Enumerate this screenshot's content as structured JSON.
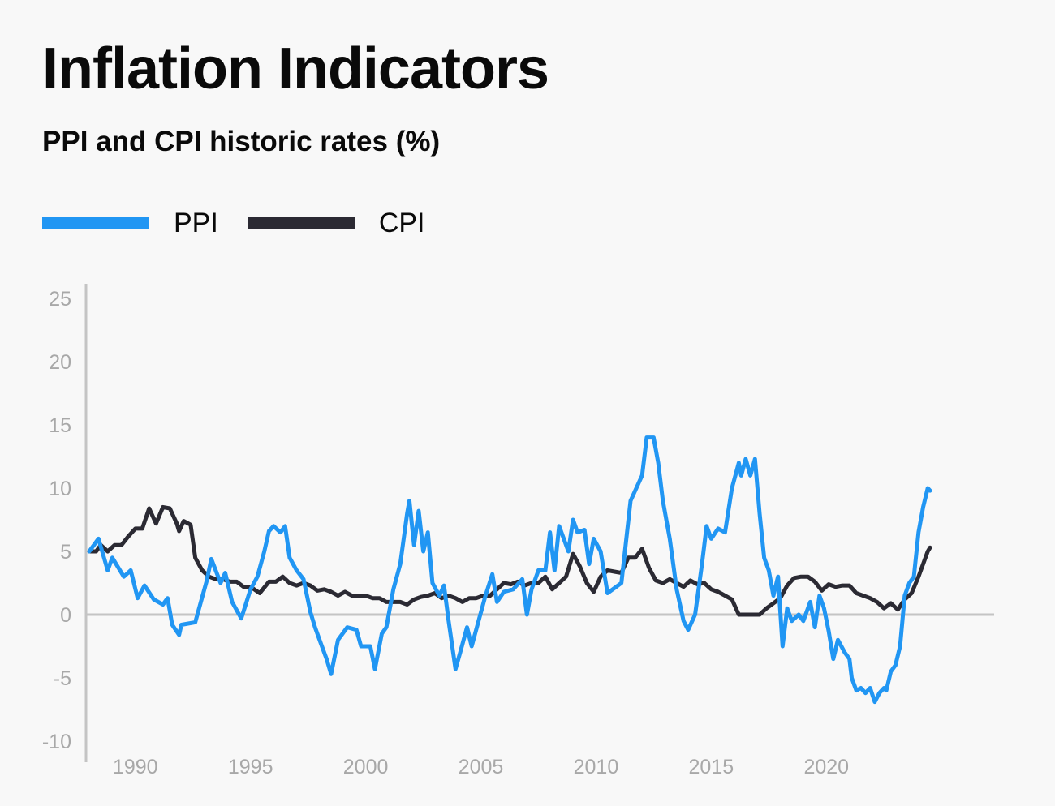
{
  "title": "Inflation Indicators",
  "subtitle": "PPI and CPI historic rates (%)",
  "legend": {
    "ppi": {
      "label": "PPI",
      "color": "#2196f3"
    },
    "cpi": {
      "label": "CPI",
      "color": "#2b2a33"
    }
  },
  "chart_data": {
    "type": "line",
    "title": "Inflation Indicators",
    "subtitle": "PPI and CPI historic rates (%)",
    "xlabel": "",
    "ylabel": "",
    "xlim": [
      1988,
      2024.5
    ],
    "ylim": [
      -10,
      26
    ],
    "x_ticks": [
      1990,
      1995,
      2000,
      2005,
      2010,
      2015,
      2020
    ],
    "y_ticks": [
      25,
      20,
      15,
      10,
      5,
      0,
      -5,
      -10
    ],
    "grid": false,
    "zero_line": true,
    "legend_position": "top-left",
    "series": [
      {
        "name": "PPI",
        "color": "#2196f3",
        "points": [
          [
            1988.0,
            5.0
          ],
          [
            1988.4,
            6.0
          ],
          [
            1988.8,
            3.5
          ],
          [
            1989.0,
            4.5
          ],
          [
            1989.5,
            3.0
          ],
          [
            1989.8,
            3.5
          ],
          [
            1990.1,
            1.3
          ],
          [
            1990.4,
            2.3
          ],
          [
            1990.8,
            1.2
          ],
          [
            1991.2,
            0.8
          ],
          [
            1991.4,
            1.3
          ],
          [
            1991.6,
            -0.8
          ],
          [
            1991.9,
            -1.6
          ],
          [
            1992.0,
            -0.8
          ],
          [
            1992.6,
            -0.6
          ],
          [
            1993.1,
            2.7
          ],
          [
            1993.3,
            4.4
          ],
          [
            1993.7,
            2.5
          ],
          [
            1993.9,
            3.3
          ],
          [
            1994.2,
            1.0
          ],
          [
            1994.6,
            -0.3
          ],
          [
            1995.0,
            2.0
          ],
          [
            1995.3,
            3.0
          ],
          [
            1995.6,
            5.0
          ],
          [
            1995.8,
            6.6
          ],
          [
            1996.0,
            7.0
          ],
          [
            1996.3,
            6.5
          ],
          [
            1996.5,
            7.0
          ],
          [
            1996.7,
            4.5
          ],
          [
            1997.0,
            3.5
          ],
          [
            1997.3,
            2.8
          ],
          [
            1997.6,
            0.2
          ],
          [
            1997.8,
            -1.0
          ],
          [
            1998.0,
            -2.0
          ],
          [
            1998.3,
            -3.5
          ],
          [
            1998.5,
            -4.7
          ],
          [
            1998.8,
            -2.0
          ],
          [
            1999.2,
            -1.0
          ],
          [
            1999.6,
            -1.2
          ],
          [
            1999.8,
            -2.5
          ],
          [
            2000.2,
            -2.5
          ],
          [
            2000.4,
            -4.3
          ],
          [
            2000.7,
            -1.5
          ],
          [
            2000.9,
            -1.0
          ],
          [
            2001.2,
            2.0
          ],
          [
            2001.5,
            4.0
          ],
          [
            2001.8,
            8.0
          ],
          [
            2001.9,
            9.0
          ],
          [
            2002.1,
            5.5
          ],
          [
            2002.3,
            8.2
          ],
          [
            2002.5,
            5.0
          ],
          [
            2002.7,
            6.5
          ],
          [
            2002.9,
            2.5
          ],
          [
            2003.2,
            1.5
          ],
          [
            2003.4,
            2.3
          ],
          [
            2003.6,
            -0.5
          ],
          [
            2003.9,
            -4.3
          ],
          [
            2004.1,
            -3.0
          ],
          [
            2004.4,
            -1.0
          ],
          [
            2004.6,
            -2.5
          ],
          [
            2004.9,
            -0.5
          ],
          [
            2005.2,
            1.5
          ],
          [
            2005.5,
            3.2
          ],
          [
            2005.7,
            1.0
          ],
          [
            2006.0,
            1.8
          ],
          [
            2006.4,
            2.0
          ],
          [
            2006.8,
            2.8
          ],
          [
            2007.0,
            0.0
          ],
          [
            2007.2,
            2.0
          ],
          [
            2007.5,
            3.5
          ],
          [
            2007.8,
            3.5
          ],
          [
            2008.0,
            6.5
          ],
          [
            2008.2,
            3.5
          ],
          [
            2008.4,
            7.0
          ],
          [
            2008.8,
            5.0
          ],
          [
            2009.0,
            7.5
          ],
          [
            2009.2,
            6.5
          ],
          [
            2009.5,
            6.7
          ],
          [
            2009.7,
            4.0
          ],
          [
            2009.9,
            6.0
          ],
          [
            2010.2,
            5.0
          ],
          [
            2010.5,
            1.7
          ],
          [
            2011.1,
            2.5
          ],
          [
            2011.5,
            9.0
          ],
          [
            2012.0,
            11.0
          ],
          [
            2012.2,
            14.0
          ],
          [
            2012.5,
            14.0
          ],
          [
            2012.7,
            12.0
          ],
          [
            2012.9,
            9.0
          ],
          [
            2013.2,
            6.0
          ],
          [
            2013.5,
            2.0
          ],
          [
            2013.8,
            -0.5
          ],
          [
            2014.0,
            -1.2
          ],
          [
            2014.3,
            0.0
          ],
          [
            2014.6,
            4.0
          ],
          [
            2014.8,
            7.0
          ],
          [
            2015.0,
            6.0
          ],
          [
            2015.3,
            6.8
          ],
          [
            2015.6,
            6.5
          ],
          [
            2015.9,
            10.0
          ],
          [
            2016.2,
            12.0
          ],
          [
            2016.3,
            11.0
          ],
          [
            2016.5,
            12.3
          ],
          [
            2016.7,
            11.0
          ],
          [
            2016.9,
            12.3
          ],
          [
            2017.1,
            8.0
          ],
          [
            2017.3,
            4.5
          ],
          [
            2017.5,
            3.5
          ],
          [
            2017.7,
            1.5
          ],
          [
            2017.9,
            3.0
          ],
          [
            2018.1,
            -2.5
          ],
          [
            2018.3,
            0.5
          ],
          [
            2018.5,
            -0.5
          ],
          [
            2018.8,
            0.0
          ],
          [
            2019.0,
            -0.5
          ],
          [
            2019.3,
            1.0
          ],
          [
            2019.5,
            -1.0
          ],
          [
            2019.7,
            1.5
          ],
          [
            2019.9,
            0.5
          ],
          [
            2020.1,
            -1.3
          ],
          [
            2020.3,
            -3.5
          ],
          [
            2020.5,
            -2.0
          ],
          [
            2020.8,
            -3.0
          ],
          [
            2021.0,
            -3.5
          ],
          [
            2021.1,
            -5.0
          ],
          [
            2021.3,
            -6.0
          ],
          [
            2021.5,
            -5.8
          ],
          [
            2021.7,
            -6.2
          ],
          [
            2021.9,
            -5.8
          ],
          [
            2022.1,
            -6.9
          ],
          [
            2022.3,
            -6.2
          ],
          [
            2022.5,
            -5.8
          ],
          [
            2022.6,
            -6.0
          ],
          [
            2022.8,
            -4.5
          ],
          [
            2023.0,
            -4.0
          ],
          [
            2023.2,
            -2.5
          ],
          [
            2023.4,
            1.5
          ],
          [
            2023.6,
            2.5
          ],
          [
            2023.8,
            3.0
          ],
          [
            2024.0,
            6.5
          ],
          [
            2024.2,
            8.5
          ],
          [
            2024.4,
            10.0
          ],
          [
            2024.5,
            9.8
          ]
        ]
      },
      {
        "name": "CPI",
        "color": "#2b2a33",
        "points": [
          [
            1988.0,
            5.0
          ],
          [
            1988.3,
            5.0
          ],
          [
            1988.5,
            5.5
          ],
          [
            1988.8,
            5.0
          ],
          [
            1989.1,
            5.5
          ],
          [
            1989.4,
            5.5
          ],
          [
            1989.7,
            6.2
          ],
          [
            1990.0,
            6.8
          ],
          [
            1990.3,
            6.8
          ],
          [
            1990.6,
            8.4
          ],
          [
            1990.9,
            7.2
          ],
          [
            1991.2,
            8.5
          ],
          [
            1991.5,
            8.4
          ],
          [
            1991.8,
            7.2
          ],
          [
            1991.9,
            6.6
          ],
          [
            1992.1,
            7.4
          ],
          [
            1992.4,
            7.1
          ],
          [
            1992.6,
            4.5
          ],
          [
            1992.9,
            3.5
          ],
          [
            1993.2,
            3.0
          ],
          [
            1993.5,
            2.8
          ],
          [
            1993.8,
            2.8
          ],
          [
            1994.1,
            2.6
          ],
          [
            1994.4,
            2.6
          ],
          [
            1994.7,
            2.2
          ],
          [
            1995.0,
            2.2
          ],
          [
            1995.4,
            1.7
          ],
          [
            1995.8,
            2.6
          ],
          [
            1996.1,
            2.6
          ],
          [
            1996.4,
            3.0
          ],
          [
            1996.7,
            2.5
          ],
          [
            1997.0,
            2.3
          ],
          [
            1997.3,
            2.5
          ],
          [
            1997.6,
            2.3
          ],
          [
            1997.9,
            1.9
          ],
          [
            1998.2,
            2.0
          ],
          [
            1998.5,
            1.8
          ],
          [
            1998.8,
            1.5
          ],
          [
            1999.1,
            1.8
          ],
          [
            1999.4,
            1.5
          ],
          [
            1999.7,
            1.5
          ],
          [
            2000.0,
            1.5
          ],
          [
            2000.3,
            1.3
          ],
          [
            2000.6,
            1.3
          ],
          [
            2000.9,
            1.0
          ],
          [
            2001.2,
            1.0
          ],
          [
            2001.5,
            1.0
          ],
          [
            2001.8,
            0.8
          ],
          [
            2002.1,
            1.2
          ],
          [
            2002.4,
            1.4
          ],
          [
            2002.7,
            1.5
          ],
          [
            2003.0,
            1.7
          ],
          [
            2003.3,
            1.3
          ],
          [
            2003.6,
            1.5
          ],
          [
            2003.9,
            1.3
          ],
          [
            2004.2,
            1.0
          ],
          [
            2004.5,
            1.3
          ],
          [
            2004.8,
            1.3
          ],
          [
            2005.1,
            1.5
          ],
          [
            2005.4,
            1.5
          ],
          [
            2005.7,
            2.0
          ],
          [
            2006.0,
            2.5
          ],
          [
            2006.3,
            2.4
          ],
          [
            2006.6,
            2.6
          ],
          [
            2006.9,
            2.3
          ],
          [
            2007.2,
            2.5
          ],
          [
            2007.5,
            2.5
          ],
          [
            2007.8,
            3.0
          ],
          [
            2008.1,
            2.0
          ],
          [
            2008.4,
            2.5
          ],
          [
            2008.7,
            3.0
          ],
          [
            2009.0,
            4.8
          ],
          [
            2009.3,
            3.8
          ],
          [
            2009.6,
            2.5
          ],
          [
            2009.9,
            1.8
          ],
          [
            2010.2,
            3.0
          ],
          [
            2010.5,
            3.5
          ],
          [
            2010.8,
            3.4
          ],
          [
            2011.1,
            3.3
          ],
          [
            2011.4,
            4.5
          ],
          [
            2011.7,
            4.5
          ],
          [
            2012.0,
            5.2
          ],
          [
            2012.3,
            3.7
          ],
          [
            2012.6,
            2.7
          ],
          [
            2012.9,
            2.5
          ],
          [
            2013.2,
            2.8
          ],
          [
            2013.5,
            2.5
          ],
          [
            2013.8,
            2.2
          ],
          [
            2014.1,
            2.7
          ],
          [
            2014.4,
            2.4
          ],
          [
            2014.7,
            2.5
          ],
          [
            2015.0,
            2.0
          ],
          [
            2015.3,
            1.8
          ],
          [
            2015.6,
            1.5
          ],
          [
            2015.9,
            1.2
          ],
          [
            2016.2,
            0.0
          ],
          [
            2016.5,
            0.0
          ],
          [
            2016.8,
            0.0
          ],
          [
            2017.1,
            0.0
          ],
          [
            2017.4,
            0.5
          ],
          [
            2017.7,
            0.9
          ],
          [
            2018.0,
            1.3
          ],
          [
            2018.3,
            2.3
          ],
          [
            2018.6,
            2.9
          ],
          [
            2018.9,
            3.0
          ],
          [
            2019.2,
            3.0
          ],
          [
            2019.5,
            2.6
          ],
          [
            2019.8,
            1.9
          ],
          [
            2020.1,
            2.4
          ],
          [
            2020.4,
            2.2
          ],
          [
            2020.7,
            2.3
          ],
          [
            2021.0,
            2.3
          ],
          [
            2021.3,
            1.7
          ],
          [
            2021.6,
            1.5
          ],
          [
            2021.9,
            1.3
          ],
          [
            2022.2,
            1.0
          ],
          [
            2022.5,
            0.5
          ],
          [
            2022.8,
            0.9
          ],
          [
            2023.1,
            0.4
          ],
          [
            2023.4,
            1.2
          ],
          [
            2023.7,
            1.7
          ],
          [
            2024.0,
            3.0
          ],
          [
            2024.2,
            4.0
          ],
          [
            2024.4,
            5.0
          ],
          [
            2024.5,
            5.3
          ]
        ]
      }
    ]
  }
}
